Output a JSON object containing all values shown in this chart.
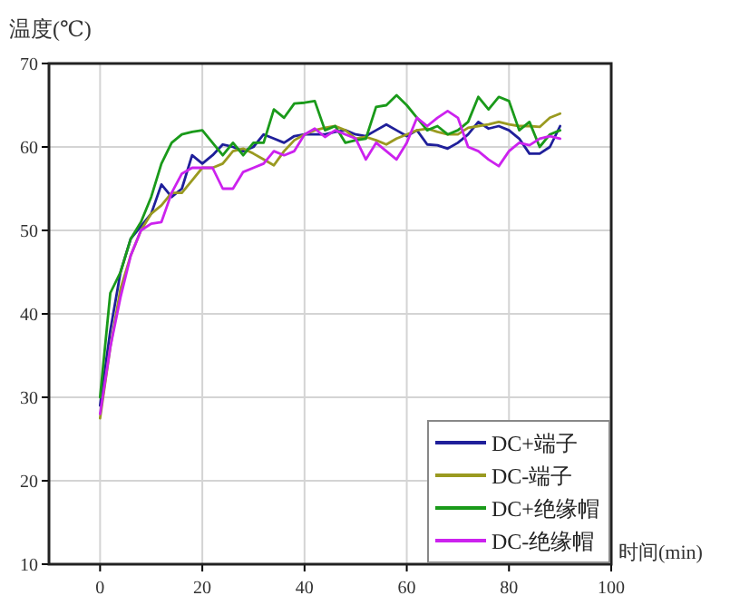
{
  "chart_data": {
    "type": "line",
    "ylabel": "温度(℃)",
    "xlabel": "时间(min)",
    "x": [
      0,
      2,
      4,
      6,
      8,
      10,
      12,
      14,
      16,
      18,
      20,
      22,
      24,
      26,
      28,
      30,
      32,
      34,
      36,
      38,
      40,
      42,
      44,
      46,
      48,
      50,
      52,
      54,
      56,
      58,
      60,
      62,
      64,
      66,
      68,
      70,
      72,
      74,
      76,
      78,
      80,
      82,
      84,
      86,
      88,
      90
    ],
    "series": [
      {
        "name": "DC+端子",
        "color": "#1f1f9a",
        "values": [
          29,
          38,
          45,
          49,
          50.5,
          52,
          55.5,
          54,
          55,
          59,
          58,
          59,
          60.3,
          60,
          59.5,
          60,
          61.5,
          61,
          60.5,
          61.3,
          61.5,
          61.5,
          61.5,
          61.8,
          62,
          61.5,
          61.3,
          62,
          62.7,
          62,
          61.3,
          62,
          60.3,
          60.2,
          59.8,
          60.5,
          61.5,
          63,
          62.2,
          62.5,
          62,
          61,
          59.2,
          59.2,
          60,
          62.5
        ]
      },
      {
        "name": "DC-端子",
        "color": "#9a9a20",
        "values": [
          27.5,
          36,
          43,
          47,
          50,
          52,
          53,
          54.5,
          54.5,
          56,
          57.5,
          57.5,
          58,
          59.5,
          59.8,
          59.2,
          58.5,
          57.8,
          59.5,
          60.8,
          61.5,
          62,
          62.3,
          62.5,
          62,
          61,
          61.2,
          60.8,
          60.3,
          61,
          61.5,
          62,
          62.2,
          61.8,
          61.5,
          61.5,
          62.3,
          62.5,
          62.7,
          63,
          62.7,
          62.5,
          62.5,
          62.4,
          63.5,
          64
        ]
      },
      {
        "name": "DC+绝缘帽",
        "color": "#1a9a1a",
        "values": [
          30,
          42.5,
          45,
          49,
          51,
          54,
          58,
          60.5,
          61.5,
          61.8,
          62,
          60.5,
          59,
          60.5,
          59,
          60.5,
          60.5,
          64.5,
          63.5,
          65.2,
          65.3,
          65.5,
          62,
          62.5,
          60.5,
          60.8,
          61,
          64.8,
          65,
          66.2,
          65,
          63.5,
          62,
          62.5,
          61.5,
          62,
          63,
          66,
          64.5,
          66,
          65.5,
          62,
          63,
          60,
          61.5,
          62
        ]
      },
      {
        "name": "DC-绝缘帽",
        "color": "#cc22ee",
        "values": [
          28,
          36,
          42,
          47,
          50,
          50.8,
          51,
          54.5,
          56.8,
          57.5,
          57.5,
          57.5,
          55,
          55,
          57,
          57.5,
          58,
          59.5,
          59,
          59.5,
          61.5,
          62.2,
          61.2,
          62,
          61.5,
          61,
          58.5,
          60.5,
          59.5,
          58.5,
          60.5,
          63.5,
          62.5,
          63.5,
          64.3,
          63.5,
          60,
          59.5,
          58.5,
          57.7,
          59.5,
          60.5,
          60.2,
          61,
          61.3,
          61
        ]
      }
    ],
    "xlim": [
      -10,
      100
    ],
    "ylim": [
      10,
      70
    ],
    "xticks": [
      0,
      20,
      40,
      60,
      80,
      100
    ],
    "yticks": [
      10,
      20,
      30,
      40,
      50,
      60,
      70
    ],
    "grid": true,
    "legend": "bottom right",
    "marker": "none",
    "line_style": "solid"
  }
}
